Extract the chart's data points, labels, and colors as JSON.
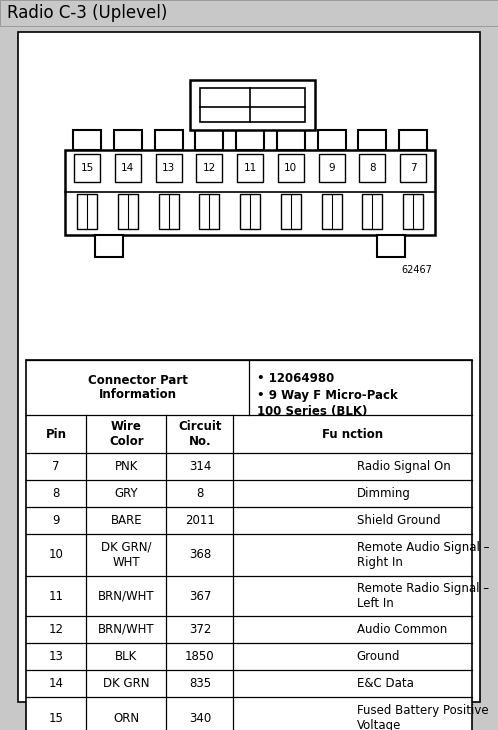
{
  "title": "Radio C-3 (Uplevel)",
  "title_bg": "#c8c8c8",
  "outer_bg": "#c8c8c8",
  "diagram_code": "62467",
  "connector_part_label": "Connector Part\nInformation",
  "connector_bullets": [
    "12064980",
    "9 Way F Micro-Pack\n100 Series (BLK)"
  ],
  "table_headers": [
    "Pin",
    "Wire\nColor",
    "Circuit\nNo.",
    "Fu nction"
  ],
  "table_rows": [
    [
      "7",
      "PNK",
      "314",
      "Radio Signal On"
    ],
    [
      "8",
      "GRY",
      "8",
      "Dimming"
    ],
    [
      "9",
      "BARE",
      "2011",
      "Shield Ground"
    ],
    [
      "10",
      "DK GRN/\nWHT",
      "368",
      "Remote Audio Signal –\nRight In"
    ],
    [
      "11",
      "BRN/WHT",
      "367",
      "Remote Radio Signal –\nLeft In"
    ],
    [
      "12",
      "BRN/WHT",
      "372",
      "Audio Common"
    ],
    [
      "13",
      "BLK",
      "1850",
      "Ground"
    ],
    [
      "14",
      "DK GRN",
      "835",
      "E&C Data"
    ],
    [
      "15",
      "ORN",
      "340",
      "Fused Battery Positive\nVoltage"
    ]
  ],
  "pin_numbers": [
    "15",
    "14",
    "13",
    "12",
    "11",
    "10",
    "9",
    "8",
    "7"
  ],
  "figsize": [
    4.98,
    7.3
  ],
  "dpi": 100
}
